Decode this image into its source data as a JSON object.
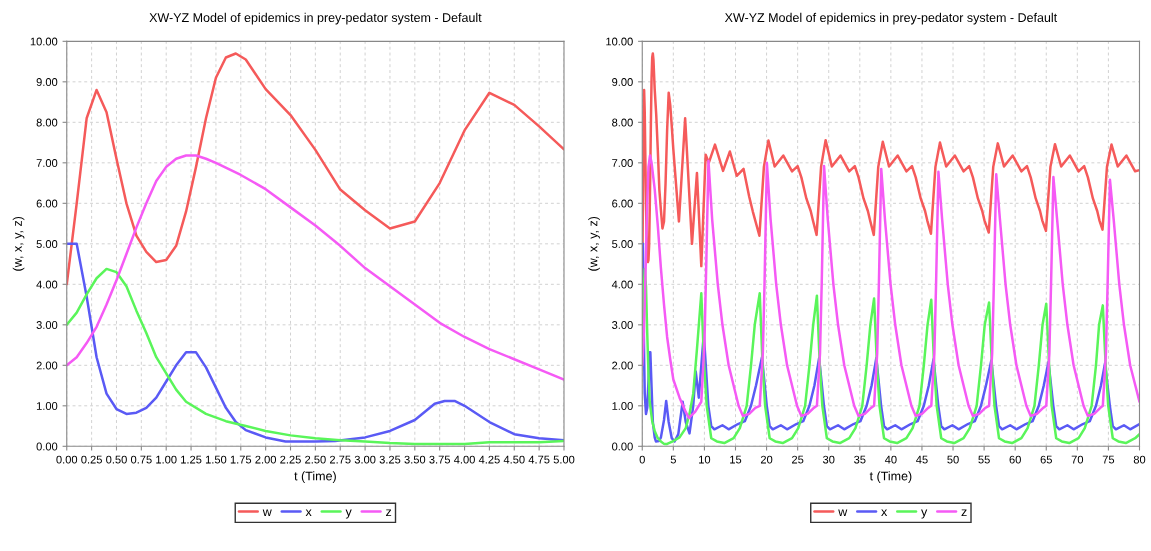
{
  "chart_data": [
    {
      "type": "line",
      "title": "XW-YZ Model of epidemics in prey-pedator system - Default",
      "xlabel": "t (Time)",
      "ylabel": "(w, x, y, z)",
      "xlim": [
        0,
        5
      ],
      "ylim": [
        0,
        10
      ],
      "xticks": [
        {
          "value": 0,
          "label": "0.00"
        },
        {
          "value": 0.25,
          "label": "0.25"
        },
        {
          "value": 0.5,
          "label": "0.50"
        },
        {
          "value": 0.75,
          "label": "0.75"
        },
        {
          "value": 1,
          "label": "1.00"
        },
        {
          "value": 1.25,
          "label": "1.25"
        },
        {
          "value": 1.5,
          "label": "1.50"
        },
        {
          "value": 1.75,
          "label": "1.75"
        },
        {
          "value": 2,
          "label": "2.00"
        },
        {
          "value": 2.25,
          "label": "2.25"
        },
        {
          "value": 2.5,
          "label": "2.50"
        },
        {
          "value": 2.75,
          "label": "2.75"
        },
        {
          "value": 3,
          "label": "3.00"
        },
        {
          "value": 3.25,
          "label": "3.25"
        },
        {
          "value": 3.5,
          "label": "3.50"
        },
        {
          "value": 3.75,
          "label": "3.75"
        },
        {
          "value": 4,
          "label": "4.00"
        },
        {
          "value": 4.25,
          "label": "4.25"
        },
        {
          "value": 4.5,
          "label": "4.50"
        },
        {
          "value": 4.75,
          "label": "4.75"
        },
        {
          "value": 5,
          "label": "5.00"
        }
      ],
      "yticks": [
        {
          "value": 0,
          "label": "0.00"
        },
        {
          "value": 1,
          "label": "1.00"
        },
        {
          "value": 2,
          "label": "2.00"
        },
        {
          "value": 3,
          "label": "3.00"
        },
        {
          "value": 4,
          "label": "4.00"
        },
        {
          "value": 5,
          "label": "5.00"
        },
        {
          "value": 6,
          "label": "6.00"
        },
        {
          "value": 7,
          "label": "7.00"
        },
        {
          "value": 8,
          "label": "8.00"
        },
        {
          "value": 9,
          "label": "9.00"
        },
        {
          "value": 10,
          "label": "10.00"
        }
      ],
      "grid": true,
      "legend": "bottom",
      "marker": "none",
      "line_style": "solid",
      "series": [
        {
          "name": "w",
          "color": "#f55a5a",
          "x": [
            0,
            0.1,
            0.2,
            0.3,
            0.4,
            0.5,
            0.6,
            0.7,
            0.8,
            0.9,
            1.0,
            1.1,
            1.2,
            1.3,
            1.4,
            1.5,
            1.6,
            1.7,
            1.8,
            2.0,
            2.25,
            2.5,
            2.75,
            3.0,
            3.25,
            3.5,
            3.75,
            4.0,
            4.25,
            4.5,
            4.75,
            5.0
          ],
          "values": [
            4.0,
            6.0,
            8.1,
            8.8,
            8.25,
            7.1,
            6.0,
            5.2,
            4.8,
            4.55,
            4.6,
            4.95,
            5.8,
            6.9,
            8.1,
            9.1,
            9.6,
            9.7,
            9.55,
            8.82,
            8.18,
            7.32,
            6.34,
            5.83,
            5.38,
            5.55,
            6.5,
            7.8,
            8.73,
            8.43,
            7.9,
            7.33
          ]
        },
        {
          "name": "x",
          "color": "#5a5af5",
          "x": [
            0,
            0.1,
            0.2,
            0.3,
            0.4,
            0.5,
            0.6,
            0.7,
            0.8,
            0.9,
            1.0,
            1.1,
            1.2,
            1.3,
            1.4,
            1.5,
            1.6,
            1.7,
            1.8,
            2.0,
            2.2,
            2.5,
            2.7,
            3.0,
            3.25,
            3.5,
            3.7,
            3.8,
            3.9,
            4.0,
            4.25,
            4.5,
            4.75,
            5.0
          ],
          "values": [
            5.0,
            5.0,
            3.7,
            2.2,
            1.3,
            0.92,
            0.8,
            0.83,
            0.95,
            1.2,
            1.6,
            2.0,
            2.32,
            2.32,
            1.95,
            1.45,
            0.95,
            0.6,
            0.4,
            0.22,
            0.12,
            0.12,
            0.13,
            0.22,
            0.38,
            0.65,
            1.05,
            1.12,
            1.12,
            1.0,
            0.6,
            0.3,
            0.2,
            0.15
          ]
        },
        {
          "name": "y",
          "color": "#5af55a",
          "x": [
            0,
            0.1,
            0.2,
            0.3,
            0.4,
            0.5,
            0.6,
            0.7,
            0.8,
            0.9,
            1.0,
            1.1,
            1.2,
            1.4,
            1.6,
            1.8,
            2.0,
            2.25,
            2.5,
            2.75,
            3.0,
            3.25,
            3.5,
            4.0,
            4.25,
            4.75,
            5.0
          ],
          "values": [
            3.0,
            3.3,
            3.75,
            4.15,
            4.38,
            4.3,
            3.95,
            3.35,
            2.8,
            2.2,
            1.8,
            1.4,
            1.1,
            0.8,
            0.62,
            0.5,
            0.38,
            0.27,
            0.2,
            0.15,
            0.12,
            0.08,
            0.06,
            0.06,
            0.1,
            0.1,
            0.13
          ]
        },
        {
          "name": "z",
          "color": "#f55af5",
          "x": [
            0,
            0.1,
            0.2,
            0.3,
            0.4,
            0.5,
            0.6,
            0.7,
            0.8,
            0.9,
            1.0,
            1.1,
            1.2,
            1.3,
            1.4,
            1.5,
            1.75,
            2.0,
            2.25,
            2.5,
            2.75,
            3.0,
            3.25,
            3.5,
            3.75,
            4.0,
            4.25,
            4.5,
            4.75,
            5.0
          ],
          "values": [
            2.0,
            2.2,
            2.55,
            2.95,
            3.5,
            4.1,
            4.75,
            5.4,
            6.0,
            6.55,
            6.9,
            7.1,
            7.18,
            7.18,
            7.1,
            7.0,
            6.7,
            6.35,
            5.9,
            5.45,
            4.95,
            4.4,
            3.95,
            3.5,
            3.05,
            2.7,
            2.4,
            2.15,
            1.9,
            1.65
          ]
        }
      ]
    },
    {
      "type": "line",
      "title": "XW-YZ Model of epidemics in prey-pedator system - Default",
      "xlabel": "t (Time)",
      "ylabel": "(w, x, y, z)",
      "xlim": [
        0,
        80
      ],
      "ylim": [
        0,
        10
      ],
      "xticks": [
        0,
        5,
        10,
        15,
        20,
        25,
        30,
        35,
        40,
        45,
        50,
        55,
        60,
        65,
        70,
        75,
        80
      ],
      "yticks": [
        {
          "value": 0,
          "label": "0.00"
        },
        {
          "value": 1,
          "label": "1.00"
        },
        {
          "value": 2,
          "label": "2.00"
        },
        {
          "value": 3,
          "label": "3.00"
        },
        {
          "value": 4,
          "label": "4.00"
        },
        {
          "value": 5,
          "label": "5.00"
        },
        {
          "value": 6,
          "label": "6.00"
        },
        {
          "value": 7,
          "label": "7.00"
        },
        {
          "value": 8,
          "label": "8.00"
        },
        {
          "value": 9,
          "label": "9.00"
        },
        {
          "value": 10,
          "label": "10.00"
        }
      ],
      "grid": true,
      "legend": "bottom",
      "marker": "none",
      "line_style": "solid",
      "series": [
        {
          "name": "w",
          "color": "#f55a5a",
          "x": [
            0,
            0.1,
            0.2,
            0.3,
            0.4,
            0.5,
            0.6,
            0.7,
            0.8,
            0.9,
            1.0,
            1.1,
            1.2,
            1.3,
            1.4,
            1.5,
            1.6,
            1.7,
            1.8,
            2.0,
            2.25,
            2.5,
            2.75,
            3.0,
            3.25,
            3.5,
            3.75,
            4.0,
            4.25,
            4.5,
            4.75,
            5.0,
            5.9,
            6.9,
            8.0,
            8.8,
            9.5,
            10.2,
            10.7,
            11.7,
            13.0,
            14.1,
            15.2,
            16.3,
            17.2,
            17.8,
            18.85,
            19.57,
            20.3,
            21.3,
            22.7,
            24.1,
            25.0,
            25.6,
            26.4,
            27.1,
            27.45,
            28.05,
            28.77,
            29.5,
            30.5,
            31.9,
            33.3,
            34.2,
            34.8,
            35.6,
            36.3,
            36.65,
            37.25,
            37.97,
            38.7,
            39.7,
            41.1,
            42.5,
            43.4,
            44.0,
            44.8,
            45.5,
            45.85,
            46.45,
            47.17,
            47.9,
            48.9,
            50.3,
            51.7,
            52.6,
            53.2,
            54.0,
            54.7,
            55.05,
            55.75,
            56.47,
            57.2,
            58.2,
            59.6,
            61.0,
            61.9,
            62.5,
            63.3,
            64.0,
            64.35,
            64.95,
            65.67,
            66.4,
            67.4,
            68.8,
            70.2,
            71.1,
            71.7,
            72.5,
            73.2,
            73.55,
            74.05,
            74.77,
            75.5,
            76.5,
            77.9,
            79.3,
            80
          ],
          "values": [
            4.0,
            6.0,
            8.1,
            8.8,
            8.25,
            7.1,
            6.0,
            5.2,
            4.8,
            4.55,
            4.6,
            4.95,
            5.8,
            6.9,
            8.1,
            9.1,
            9.6,
            9.7,
            9.55,
            8.82,
            8.18,
            7.32,
            6.34,
            5.83,
            5.38,
            5.55,
            6.5,
            7.8,
            8.73,
            8.43,
            7.9,
            7.33,
            5.55,
            8.1,
            5.0,
            6.75,
            4.45,
            7.2,
            7.0,
            7.45,
            6.8,
            7.28,
            6.68,
            6.85,
            6.17,
            5.79,
            5.2,
            6.9,
            7.55,
            6.91,
            7.18,
            6.79,
            6.92,
            6.64,
            6.12,
            5.81,
            5.58,
            5.22,
            6.9,
            7.56,
            6.91,
            7.18,
            6.79,
            6.92,
            6.64,
            6.12,
            5.81,
            5.58,
            5.22,
            6.9,
            7.52,
            6.91,
            7.18,
            6.79,
            6.92,
            6.64,
            6.12,
            5.81,
            5.58,
            5.25,
            6.9,
            7.5,
            6.91,
            7.18,
            6.79,
            6.92,
            6.64,
            6.12,
            5.81,
            5.58,
            5.28,
            6.9,
            7.48,
            6.91,
            7.18,
            6.79,
            6.92,
            6.64,
            6.12,
            5.81,
            5.58,
            5.32,
            6.9,
            7.46,
            6.91,
            7.18,
            6.79,
            6.92,
            6.64,
            6.12,
            5.81,
            5.58,
            5.35,
            6.9,
            7.45,
            6.91,
            7.18,
            6.79,
            6.82
          ]
        },
        {
          "name": "x",
          "color": "#5a5af5",
          "x": [
            0,
            0.1,
            0.2,
            0.3,
            0.4,
            0.6,
            0.8,
            1.0,
            1.2,
            1.3,
            1.5,
            1.7,
            2.0,
            2.2,
            2.7,
            3.0,
            3.5,
            3.85,
            4.25,
            4.75,
            5.2,
            5.8,
            6.5,
            7.0,
            7.6,
            8.2,
            8.6,
            9.1,
            9.9,
            10.63,
            11.1,
            11.6,
            12.9,
            13.9,
            15.4,
            16.5,
            17.5,
            18.3,
            19.26,
            20.03,
            20.5,
            21.0,
            22.3,
            23.3,
            24.8,
            25.9,
            26.9,
            27.7,
            28.46,
            29.23,
            29.7,
            30.2,
            31.5,
            32.5,
            34.0,
            35.1,
            36.1,
            36.9,
            37.66,
            38.43,
            38.9,
            39.4,
            40.7,
            41.7,
            43.2,
            44.3,
            45.3,
            46.1,
            46.86,
            47.63,
            48.1,
            48.6,
            49.9,
            50.9,
            52.4,
            53.5,
            54.5,
            55.3,
            56.16,
            56.93,
            57.4,
            57.9,
            59.2,
            60.2,
            61.7,
            62.8,
            63.8,
            64.6,
            65.36,
            66.13,
            66.6,
            67.1,
            68.4,
            69.4,
            70.9,
            72.0,
            73.0,
            73.8,
            74.46,
            75.23,
            75.7,
            76.2,
            77.5,
            78.5,
            80
          ],
          "values": [
            5.0,
            5.0,
            3.7,
            2.2,
            1.3,
            0.8,
            0.95,
            1.6,
            2.32,
            2.32,
            1.45,
            0.6,
            0.22,
            0.12,
            0.13,
            0.22,
            0.65,
            1.12,
            0.6,
            0.2,
            0.12,
            0.3,
            1.1,
            0.6,
            0.32,
            1.0,
            1.85,
            1.2,
            2.78,
            1.0,
            0.5,
            0.42,
            0.52,
            0.42,
            0.55,
            0.62,
            1.0,
            1.5,
            2.2,
            1.0,
            0.5,
            0.42,
            0.52,
            0.42,
            0.55,
            0.62,
            1.0,
            1.5,
            2.18,
            1.0,
            0.5,
            0.42,
            0.52,
            0.42,
            0.55,
            0.62,
            1.0,
            1.5,
            2.18,
            1.0,
            0.5,
            0.42,
            0.52,
            0.42,
            0.55,
            0.62,
            1.0,
            1.5,
            2.15,
            1.0,
            0.5,
            0.42,
            0.52,
            0.42,
            0.55,
            0.62,
            1.0,
            1.5,
            2.12,
            1.0,
            0.5,
            0.42,
            0.52,
            0.42,
            0.55,
            0.62,
            1.0,
            1.5,
            2.08,
            1.0,
            0.5,
            0.42,
            0.52,
            0.42,
            0.55,
            0.62,
            1.0,
            1.5,
            2.05,
            1.0,
            0.5,
            0.42,
            0.52,
            0.42,
            0.55
          ]
        },
        {
          "name": "y",
          "color": "#5af55a",
          "x": [
            0,
            0.2,
            0.4,
            0.6,
            0.8,
            1.0,
            1.2,
            1.6,
            2.0,
            2.5,
            3.0,
            3.5,
            4.0,
            5.0,
            6.0,
            7.0,
            7.6,
            8.2,
            8.8,
            9.5,
            9.96,
            10.37,
            11.1,
            12.0,
            13.2,
            14.7,
            15.7,
            16.8,
            17.5,
            18.1,
            18.9,
            19.36,
            19.77,
            20.5,
            21.4,
            22.6,
            24.1,
            25.1,
            26.2,
            26.9,
            27.5,
            28.1,
            28.56,
            28.97,
            29.7,
            30.6,
            31.8,
            33.3,
            34.3,
            35.4,
            36.1,
            36.7,
            37.3,
            37.76,
            38.17,
            38.9,
            39.8,
            41.0,
            42.5,
            43.5,
            44.6,
            45.3,
            45.9,
            46.5,
            46.96,
            47.37,
            48.1,
            49.0,
            50.2,
            51.7,
            52.7,
            53.8,
            54.5,
            55.1,
            55.8,
            56.26,
            56.67,
            57.4,
            58.3,
            59.5,
            61.0,
            62.0,
            63.1,
            63.8,
            64.4,
            65.0,
            65.46,
            65.87,
            66.6,
            67.5,
            68.7,
            70.2,
            71.2,
            72.3,
            73.0,
            73.5,
            74.1,
            74.56,
            74.97,
            75.7,
            76.6,
            77.8,
            79.3,
            80
          ],
          "values": [
            3.0,
            3.75,
            4.38,
            3.95,
            2.8,
            1.8,
            1.1,
            0.62,
            0.38,
            0.2,
            0.12,
            0.06,
            0.06,
            0.13,
            0.22,
            0.45,
            0.8,
            1.3,
            2.4,
            3.78,
            2.0,
            1.0,
            0.2,
            0.12,
            0.08,
            0.2,
            0.45,
            1.0,
            2.0,
            3.0,
            3.78,
            2.0,
            1.0,
            0.2,
            0.12,
            0.08,
            0.2,
            0.45,
            1.0,
            2.0,
            3.0,
            3.72,
            2.0,
            1.0,
            0.2,
            0.12,
            0.08,
            0.2,
            0.45,
            1.0,
            2.0,
            3.0,
            3.65,
            2.0,
            1.0,
            0.2,
            0.12,
            0.08,
            0.2,
            0.45,
            1.0,
            2.0,
            3.0,
            3.62,
            2.0,
            1.0,
            0.2,
            0.12,
            0.08,
            0.2,
            0.45,
            1.0,
            2.0,
            3.0,
            3.55,
            2.0,
            1.0,
            0.2,
            0.12,
            0.08,
            0.2,
            0.45,
            1.0,
            2.0,
            3.0,
            3.52,
            2.0,
            1.0,
            0.2,
            0.12,
            0.08,
            0.2,
            0.45,
            1.0,
            2.0,
            3.0,
            3.48,
            2.0,
            1.0,
            0.2,
            0.12,
            0.08,
            0.2,
            0.3
          ]
        },
        {
          "name": "z",
          "color": "#f55af5",
          "x": [
            0,
            0.2,
            0.4,
            0.6,
            0.8,
            1.0,
            1.25,
            1.5,
            2.0,
            2.5,
            3.0,
            3.5,
            4.0,
            4.5,
            5.0,
            6.0,
            7.0,
            7.5,
            8.5,
            9.5,
            10.0,
            10.3,
            10.65,
            11.25,
            12.15,
            12.9,
            13.9,
            15.5,
            16.2,
            17.2,
            18.2,
            18.9,
            19.4,
            19.67,
            20.05,
            20.65,
            21.55,
            22.3,
            23.3,
            24.9,
            25.6,
            26.6,
            27.6,
            28.1,
            28.6,
            28.87,
            29.25,
            29.85,
            30.75,
            31.5,
            32.5,
            34.1,
            34.8,
            35.8,
            36.8,
            37.3,
            37.8,
            38.07,
            38.45,
            39.05,
            39.95,
            40.7,
            41.7,
            43.3,
            44.0,
            45.0,
            46.0,
            46.5,
            47.0,
            47.27,
            47.65,
            48.25,
            49.15,
            49.9,
            50.9,
            52.5,
            53.2,
            54.2,
            55.2,
            55.8,
            56.3,
            56.57,
            56.95,
            57.55,
            58.45,
            59.2,
            60.2,
            61.8,
            62.5,
            63.5,
            64.5,
            65.0,
            65.5,
            65.77,
            66.15,
            66.75,
            67.65,
            68.4,
            69.4,
            71.0,
            71.7,
            72.7,
            73.7,
            74.1,
            74.6,
            74.87,
            75.25,
            75.85,
            76.75,
            77.5,
            78.5,
            80
          ],
          "values": [
            2.0,
            2.55,
            3.5,
            4.75,
            6.0,
            6.9,
            7.18,
            7.0,
            6.35,
            5.45,
            4.4,
            3.5,
            2.7,
            2.15,
            1.65,
            1.2,
            0.85,
            0.7,
            0.85,
            1.1,
            2.5,
            4.5,
            7.05,
            5.6,
            4.0,
            3.0,
            2.0,
            1.0,
            0.75,
            0.8,
            0.95,
            1.0,
            2.3,
            4.0,
            7.0,
            5.6,
            4.0,
            3.0,
            2.0,
            1.0,
            0.75,
            0.8,
            0.95,
            1.0,
            2.3,
            4.0,
            6.92,
            5.6,
            4.0,
            3.0,
            2.0,
            1.0,
            0.75,
            0.8,
            0.95,
            1.0,
            2.3,
            4.0,
            6.85,
            5.6,
            4.0,
            3.0,
            2.0,
            1.0,
            0.75,
            0.8,
            0.95,
            1.0,
            2.3,
            4.0,
            6.78,
            5.6,
            4.0,
            3.0,
            2.0,
            1.0,
            0.75,
            0.8,
            0.95,
            1.0,
            2.3,
            4.0,
            6.72,
            5.6,
            4.0,
            3.0,
            2.0,
            1.0,
            0.75,
            0.8,
            0.95,
            1.0,
            2.3,
            4.0,
            6.65,
            5.6,
            4.0,
            3.0,
            2.0,
            1.0,
            0.75,
            0.8,
            0.95,
            1.0,
            2.3,
            4.0,
            6.58,
            5.6,
            4.0,
            3.0,
            2.0,
            1.1
          ]
        }
      ]
    }
  ]
}
